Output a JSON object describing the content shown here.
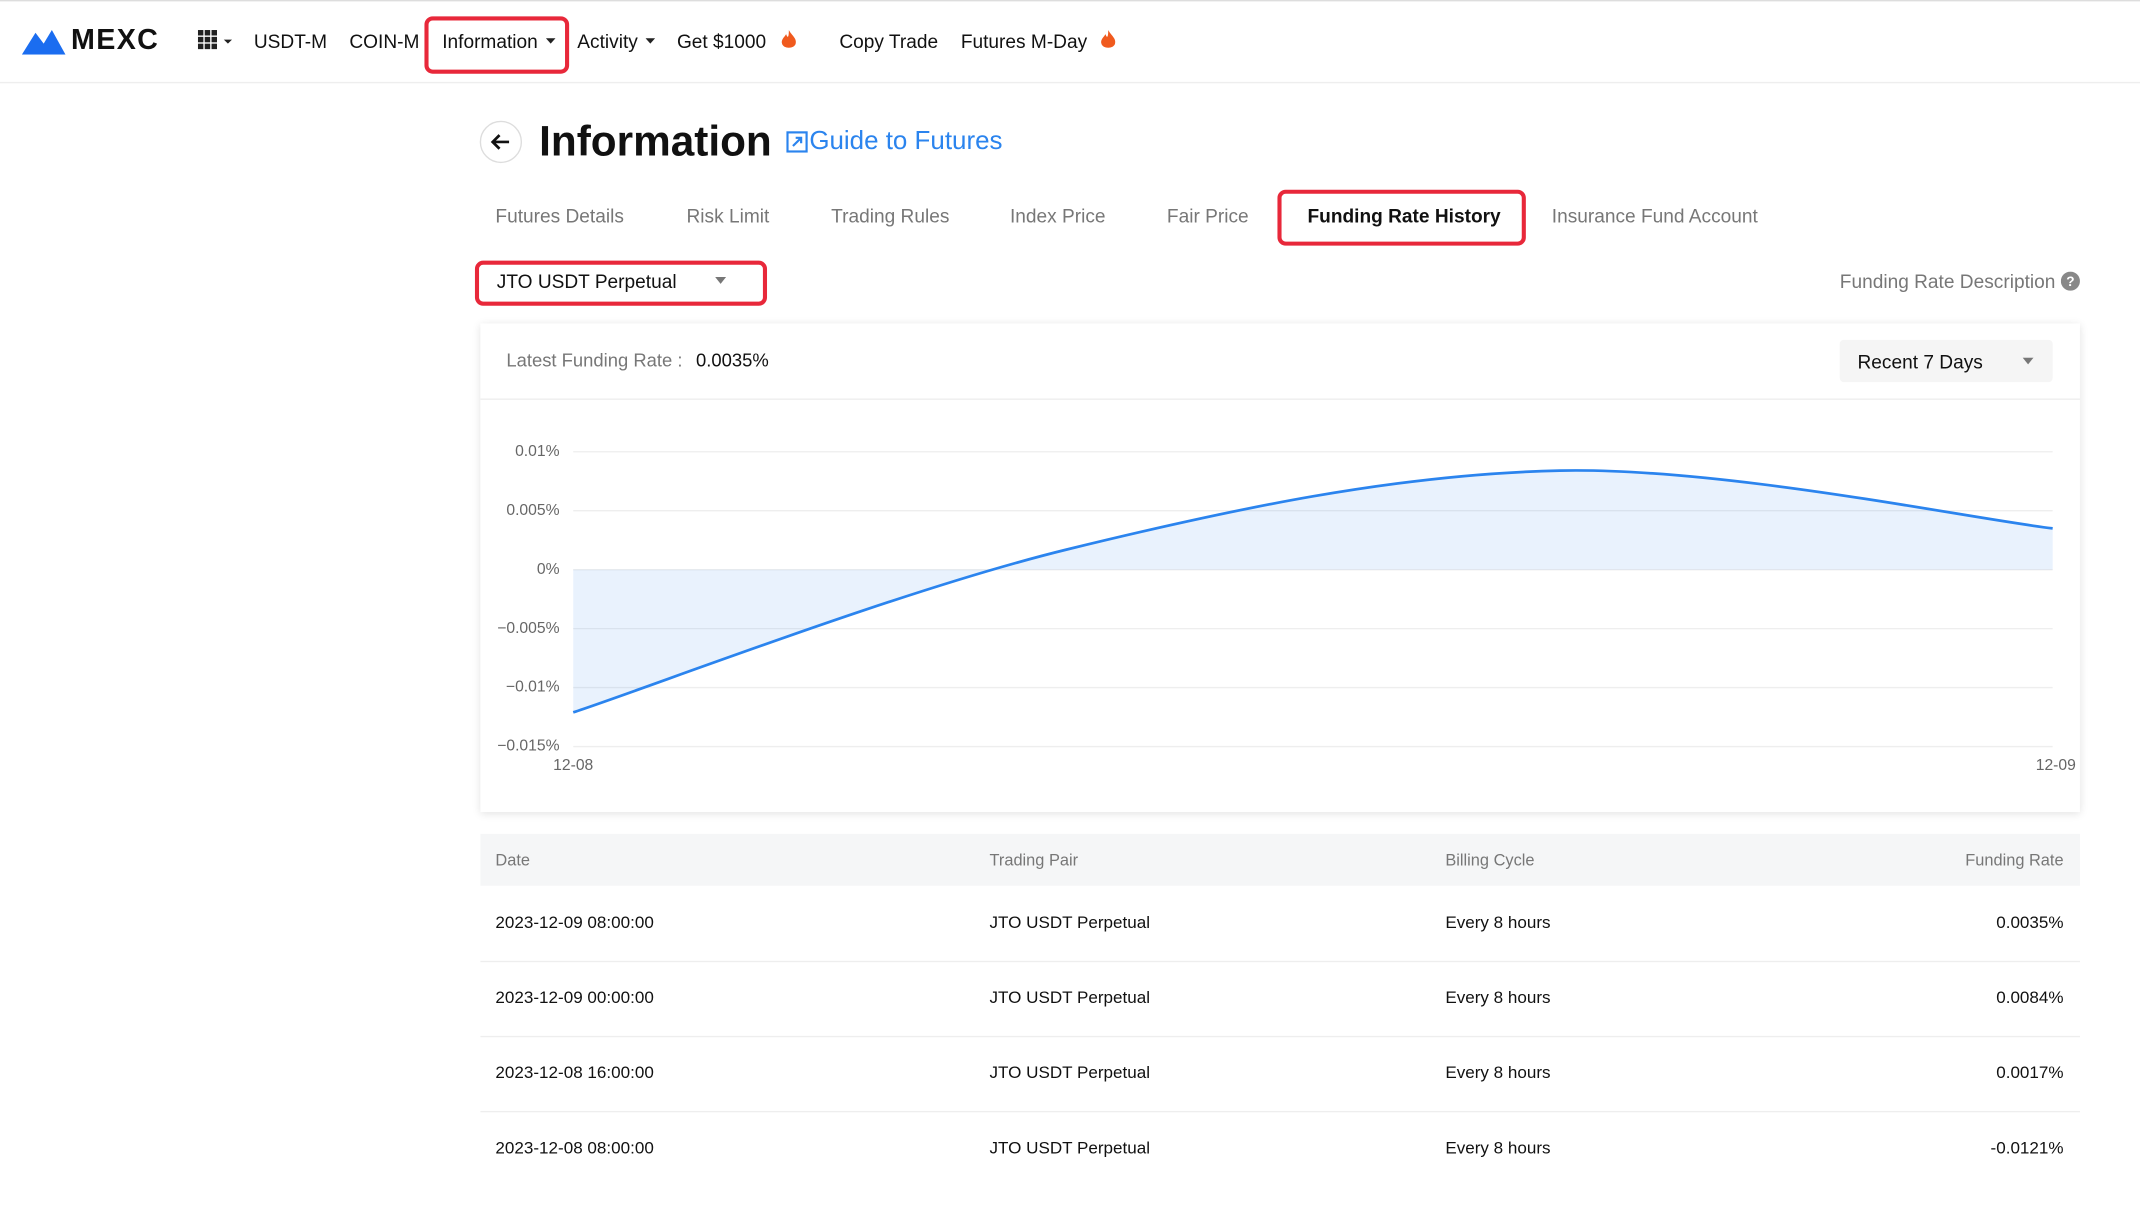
{
  "nav": {
    "logo": "MEXC",
    "items": [
      "USDT-M",
      "COIN-M",
      "Information",
      "Activity",
      "Get $1000",
      "Copy Trade",
      "Futures M-Day"
    ]
  },
  "header": {
    "title": "Information",
    "guide": "Guide to Futures"
  },
  "tabs": [
    "Futures Details",
    "Risk Limit",
    "Trading Rules",
    "Index Price",
    "Fair Price",
    "Funding Rate History",
    "Insurance Fund Account"
  ],
  "selector": "JTO USDT Perpetual",
  "description_link": "Funding Rate Description",
  "latest": {
    "label": "Latest Funding Rate :",
    "value": "0.0035%"
  },
  "range": "Recent 7 Days",
  "chart_data": {
    "type": "line",
    "categories": [
      "12-08",
      null,
      null,
      "12-09"
    ],
    "values": [
      -0.0121,
      0.0017,
      0.0084,
      0.0035
    ],
    "color": "#2b84ee",
    "ylim": [
      -0.015,
      0.01
    ],
    "yticks": [
      {
        "value": -0.015,
        "label": "−0.015%"
      },
      {
        "value": -0.01,
        "label": "−0.01%"
      },
      {
        "value": -0.005,
        "label": "−0.005%"
      },
      {
        "value": 0,
        "label": "0%"
      },
      {
        "value": 0.005,
        "label": "0.005%"
      },
      {
        "value": 0.01,
        "label": "0.01%"
      }
    ],
    "grid": true
  },
  "table": {
    "columns": [
      "Date",
      "Trading Pair",
      "Billing Cycle",
      "Funding Rate"
    ],
    "rows": [
      [
        "2023-12-09 08:00:00",
        "JTO USDT Perpetual",
        "Every 8 hours",
        "0.0035%"
      ],
      [
        "2023-12-09 00:00:00",
        "JTO USDT Perpetual",
        "Every 8 hours",
        "0.0084%"
      ],
      [
        "2023-12-08 16:00:00",
        "JTO USDT Perpetual",
        "Every 8 hours",
        "0.0017%"
      ],
      [
        "2023-12-08 08:00:00",
        "JTO USDT Perpetual",
        "Every 8 hours",
        "-0.0121%"
      ]
    ]
  }
}
